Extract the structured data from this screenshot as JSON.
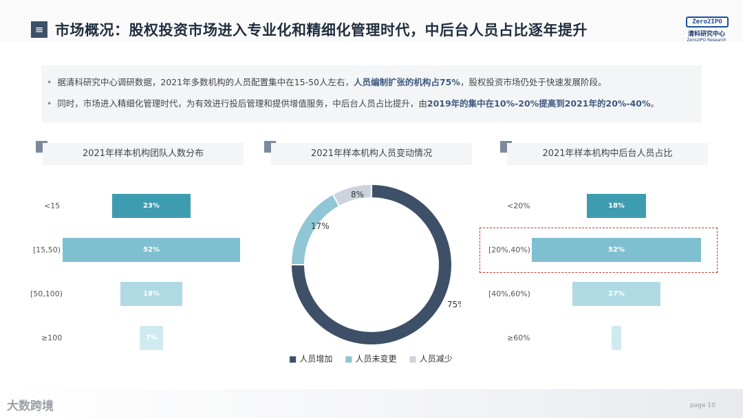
{
  "header": {
    "menu_icon": "≡",
    "title": "市场概况：股权投资市场进入专业化和精细化管理时代，中后台人员占比逐年提升",
    "logo": {
      "box": "Zero2IPO",
      "cn": "清科研究中心",
      "en": "Zero2IPO Research"
    }
  },
  "bullets": [
    {
      "dot": "•",
      "pre": "据清科研究中心调研数据，2021年多数机构的人员配置集中在15-50人左右，",
      "hl": "人员编制扩张的机构占75%",
      "post": "，股权投资市场仍处于快速发展阶段。"
    },
    {
      "dot": "•",
      "pre": "同时，市场进入精细化管理时代，为有效进行投后管理和提供增值服务，中后台人员占比提升，由",
      "hl": "2019年的集中在10%-20%提高到2021年的20%-40%",
      "post": "。"
    }
  ],
  "chart_data": [
    {
      "type": "bar",
      "title": "2021年样本机构团队人数分布",
      "categories": [
        "<15",
        "[15,50)",
        "[50,100)",
        "≥100"
      ],
      "values": [
        23,
        52,
        18,
        7
      ],
      "labels": [
        "23%",
        "52%",
        "18%",
        "7%"
      ],
      "colors": [
        "#3e9cb0",
        "#7fc0d0",
        "#b0dae3",
        "#d0ebf0"
      ]
    },
    {
      "type": "pie",
      "title": "2021年样本机构人员变动情况",
      "categories": [
        "人员增加",
        "人员未变更",
        "人员减少"
      ],
      "values": [
        75,
        17,
        8
      ],
      "labels": [
        "75%",
        "17%",
        "8%"
      ],
      "colors": [
        "#3d5068",
        "#90c6d6",
        "#ccd3dc"
      ],
      "legend_marker": "■"
    },
    {
      "type": "bar",
      "title": "2021年样本机构中后台人员占比",
      "categories": [
        "<20%",
        "[20%,40%)",
        "[40%,60%)",
        "≥60%"
      ],
      "values": [
        18,
        52,
        27,
        3
      ],
      "labels": [
        "18%",
        "52%",
        "27%",
        ""
      ],
      "colors": [
        "#3e9cb0",
        "#7fc0d0",
        "#b0dae3",
        "#d0ebf0"
      ]
    }
  ],
  "footer": {
    "watermark": "大数跨境",
    "page": "page  10"
  }
}
